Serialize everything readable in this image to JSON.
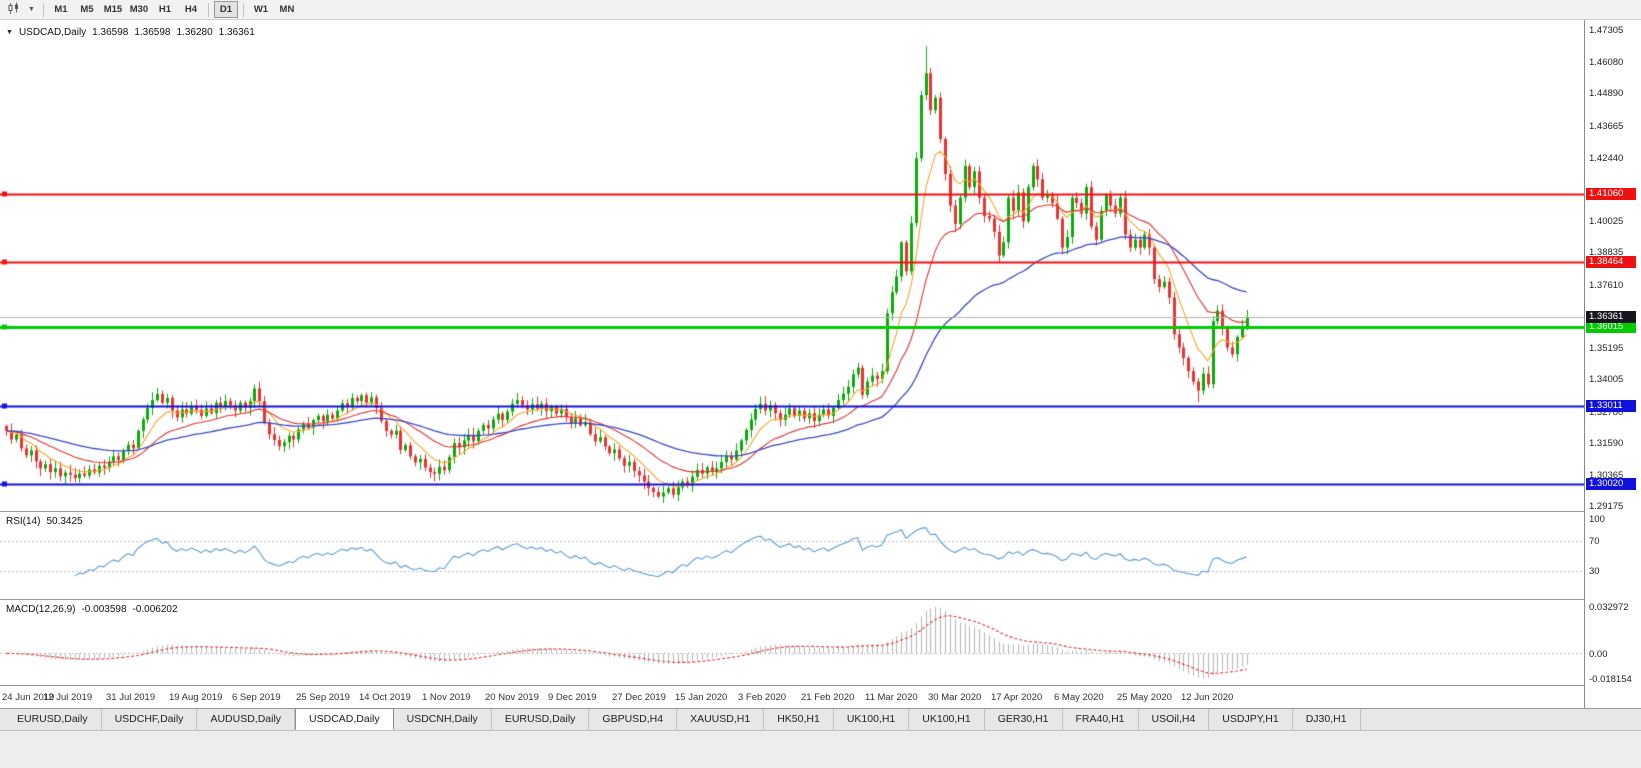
{
  "toolbar": {
    "chart_type_icon": "candlestick-chart-icon",
    "dropdown_icon": "chevron-down-icon",
    "timeframes": [
      "M1",
      "M5",
      "M15",
      "M30",
      "H1",
      "H4",
      "D1",
      "W1",
      "MN"
    ],
    "active_timeframe": "D1"
  },
  "chart": {
    "symbol_label": "USDCAD,Daily",
    "ohlc": {
      "open": "1.36598",
      "high": "1.36598",
      "low": "1.36280",
      "close": "1.36361"
    },
    "current_price": {
      "label": "1.36361",
      "value": 1.36361
    },
    "price_axis_labels": [
      "1.47305",
      "1.46080",
      "1.44890",
      "1.43665",
      "1.42440",
      "1.40025",
      "1.38835",
      "1.37610",
      "1.35195",
      "1.34005",
      "1.32780",
      "1.31590",
      "1.30365",
      "1.29175"
    ],
    "hlines": [
      {
        "label": "1.41060",
        "value": 1.4106,
        "color": "#ee1111",
        "width": 2
      },
      {
        "label": "1.38464",
        "value": 1.38464,
        "color": "#ee1111",
        "width": 2
      },
      {
        "label": "1.36015",
        "value": 1.36015,
        "color": "#00cc00",
        "width": 3
      },
      {
        "label": "1.33011",
        "value": 1.33011,
        "color": "#1111dd",
        "width": 2
      },
      {
        "label": "1.30020",
        "value": 1.3002,
        "color": "#1111dd",
        "width": 2
      }
    ]
  },
  "rsi": {
    "name": "RSI(14)",
    "value": "50.3425",
    "levels": [
      "100",
      "70",
      "30"
    ]
  },
  "macd": {
    "name": "MACD(12,26,9)",
    "value_main": "-0.003598",
    "value_signal": "-0.006202",
    "axis_labels": [
      "0.032972",
      "0.00",
      "-0.018154"
    ]
  },
  "tabs": [
    "EURUSD,Daily",
    "USDCHF,Daily",
    "AUDUSD,Daily",
    "USDCAD,Daily",
    "USDCNH,Daily",
    "EURUSD,Daily",
    "GBPUSD,H4",
    "XAUUSD,H1",
    "HK50,H1",
    "UK100,H1",
    "UK100,H1",
    "GER30,H1",
    "FRA40,H1",
    "USOil,H4",
    "USDJPY,H1",
    "DJ30,H1"
  ],
  "active_tab_index": 3,
  "colors": {
    "candle_up": "#0caa0c",
    "candle_down": "#e93232",
    "ma_fast": "#f2a72e",
    "ma_mid": "#e03535",
    "ma_slow": "#3b49c4",
    "rsi_line": "#5a9bd5",
    "macd_histogram": "#b4b4b4",
    "macd_signal": "#e03535",
    "price_tag_bg": "#16161f",
    "current_price_line": "#b0b0b0",
    "grid_dotted": "#c0c0c0"
  },
  "chart_data": {
    "type": "candlestick",
    "symbol": "USDCAD",
    "timeframe": "Daily",
    "title": "USDCAD Daily with RSI(14) and MACD(12,26,9)",
    "price_range": {
      "top": 1.4768,
      "bottom": 1.2896
    },
    "x_labels": [
      "24 Jun 2019",
      "12 Jul 2019",
      "31 Jul 2019",
      "19 Aug 2019",
      "6 Sep 2019",
      "25 Sep 2019",
      "14 Oct 2019",
      "1 Nov 2019",
      "20 Nov 2019",
      "9 Dec 2019",
      "27 Dec 2019",
      "15 Jan 2020",
      "3 Feb 2020",
      "21 Feb 2020",
      "11 Mar 2020",
      "30 Mar 2020",
      "17 Apr 2020",
      "6 May 2020",
      "25 May 2020",
      "12 Jun 2020"
    ],
    "label_every_n_bars": 13,
    "right_margin_ratio": 0.214,
    "closes": [
      1.3205,
      1.3172,
      1.319,
      1.3138,
      1.3112,
      1.313,
      1.3088,
      1.3062,
      1.3078,
      1.3048,
      1.3062,
      1.3032,
      1.3046,
      1.3038,
      1.3025,
      1.3042,
      1.3034,
      1.3058,
      1.3046,
      1.3072,
      1.3064,
      1.3088,
      1.3108,
      1.3094,
      1.3128,
      1.3152,
      1.3138,
      1.3205,
      1.3248,
      1.3292,
      1.3322,
      1.3345,
      1.3312,
      1.333,
      1.3282,
      1.3256,
      1.3286,
      1.327,
      1.33,
      1.3284,
      1.3262,
      1.329,
      1.3272,
      1.3312,
      1.3296,
      1.3318,
      1.3302,
      1.3282,
      1.3312,
      1.3292,
      1.3318,
      1.3366,
      1.3318,
      1.3235,
      1.3192,
      1.317,
      1.3146,
      1.3162,
      1.3186,
      1.3172,
      1.321,
      1.3232,
      1.3216,
      1.3246,
      1.3262,
      1.3242,
      1.3266,
      1.3252,
      1.3282,
      1.331,
      1.3296,
      1.333,
      1.3318,
      1.334,
      1.3312,
      1.3332,
      1.3292,
      1.3242,
      1.3205,
      1.319,
      1.3205,
      1.3132,
      1.315,
      1.3108,
      1.3085,
      1.3098,
      1.3065,
      1.3048,
      1.3042,
      1.3068,
      1.3055,
      1.3105,
      1.3158,
      1.3142,
      1.3168,
      1.319,
      1.3165,
      1.3205,
      1.3228,
      1.3214,
      1.3248,
      1.327,
      1.3246,
      1.3278,
      1.3308,
      1.3322,
      1.3302,
      1.3286,
      1.3306,
      1.329,
      1.3308,
      1.328,
      1.3298,
      1.327,
      1.3288,
      1.3256,
      1.3232,
      1.3252,
      1.3226,
      1.3238,
      1.3192,
      1.3165,
      1.318,
      1.3145,
      1.312,
      1.3134,
      1.31,
      1.3072,
      1.3086,
      1.3052,
      1.3035,
      1.3012,
      1.2988,
      1.2972,
      1.2955,
      1.297,
      1.2986,
      1.2962,
      1.299,
      1.3012,
      1.2996,
      1.303,
      1.3056,
      1.3042,
      1.3066,
      1.3048,
      1.3062,
      1.3086,
      1.311,
      1.3096,
      1.313,
      1.3168,
      1.3208,
      1.3248,
      1.3288,
      1.3308,
      1.3282,
      1.3302,
      1.3272,
      1.3246,
      1.3266,
      1.329,
      1.3262,
      1.3282,
      1.3252,
      1.3272,
      1.3242,
      1.3266,
      1.3286,
      1.3262,
      1.3292,
      1.3322,
      1.3346,
      1.3372,
      1.342,
      1.3445,
      1.3342,
      1.3392,
      1.3415,
      1.3402,
      1.3432,
      1.3652,
      1.3732,
      1.3792,
      1.3922,
      1.3812,
      1.3995,
      1.4242,
      1.4482,
      1.4565,
      1.4425,
      1.4472,
      1.4315,
      1.4182,
      1.4062,
      1.3992,
      1.4092,
      1.4212,
      1.4132,
      1.4192,
      1.4092,
      1.4022,
      1.4012,
      1.3962,
      1.3872,
      1.3922,
      1.4092,
      1.4042,
      1.4112,
      1.4002,
      1.4132,
      1.4212,
      1.4162,
      1.4092,
      1.4102,
      1.4072,
      1.4012,
      1.3902,
      1.3942,
      1.4092,
      1.4072,
      1.4032,
      1.4132,
      1.3982,
      1.3932,
      1.4042,
      1.4102,
      1.4062,
      1.4032,
      1.4092,
      1.3952,
      1.3902,
      1.3932,
      1.3902,
      1.3952,
      1.3902,
      1.3782,
      1.3752,
      1.3772,
      1.3712,
      1.3572,
      1.3522,
      1.3482,
      1.3432,
      1.3392,
      1.3358,
      1.3422,
      1.3382,
      1.3622,
      1.3662,
      1.3592,
      1.3522,
      1.3496,
      1.3562,
      1.3598,
      1.3636
    ],
    "wick_overrides": {
      "51": {
        "high": 1.3382
      },
      "134": {
        "low": 1.2948
      },
      "175": {
        "high": 1.3464
      },
      "189": {
        "high": 1.4668
      },
      "245": {
        "low": 1.3315
      }
    },
    "overlays": [
      {
        "name": "ma-fast",
        "period": 8,
        "color": "#f2a72e",
        "width": 1.1
      },
      {
        "name": "ma-mid",
        "period": 21,
        "color": "#e03535",
        "width": 1.1
      },
      {
        "name": "ma-slow",
        "period": 52,
        "color": "#3b49c4",
        "width": 1.3
      }
    ],
    "indicators": {
      "rsi_period": 14,
      "macd_fast": 12,
      "macd_slow": 26,
      "macd_signal": 9
    }
  }
}
